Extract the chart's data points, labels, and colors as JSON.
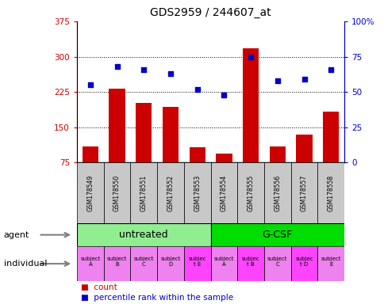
{
  "title": "GDS2959 / 244607_at",
  "samples": [
    "GSM178549",
    "GSM178550",
    "GSM178551",
    "GSM178552",
    "GSM178553",
    "GSM178554",
    "GSM178555",
    "GSM178556",
    "GSM178557",
    "GSM178558"
  ],
  "counts": [
    110,
    232,
    202,
    193,
    108,
    95,
    318,
    110,
    135,
    183
  ],
  "percentile_ranks": [
    55,
    68,
    66,
    63,
    52,
    48,
    75,
    58,
    59,
    66
  ],
  "ylim_left": [
    75,
    375
  ],
  "ylim_right": [
    0,
    100
  ],
  "yticks_left": [
    75,
    150,
    225,
    300,
    375
  ],
  "yticks_right": [
    0,
    25,
    50,
    75,
    100
  ],
  "ytick_labels_left": [
    "75",
    "150",
    "225",
    "300",
    "375"
  ],
  "ytick_labels_right": [
    "0",
    "25",
    "50",
    "75",
    "100%"
  ],
  "agent_groups": [
    {
      "label": "untreated",
      "start": 0,
      "end": 5,
      "color": "#90EE90"
    },
    {
      "label": "G-CSF",
      "start": 5,
      "end": 10,
      "color": "#00DD00"
    }
  ],
  "individual_labels": [
    "subject\nA",
    "subject\nB",
    "subject\nC",
    "subject\nD",
    "subjec\nt E",
    "subject\nA",
    "subjec\nt B",
    "subject\nC",
    "subjec\nt D",
    "subject\nE"
  ],
  "highlight_individuals": [
    4,
    6,
    8
  ],
  "bar_color": "#CC0000",
  "dot_color": "#0000CC",
  "bar_width": 0.6,
  "left_axis_color": "#CC0000",
  "right_axis_color": "#0000CC",
  "sample_bg": "#C8C8C8",
  "indiv_normal_color": "#EE82EE",
  "indiv_highlight_color": "#FF44FF"
}
